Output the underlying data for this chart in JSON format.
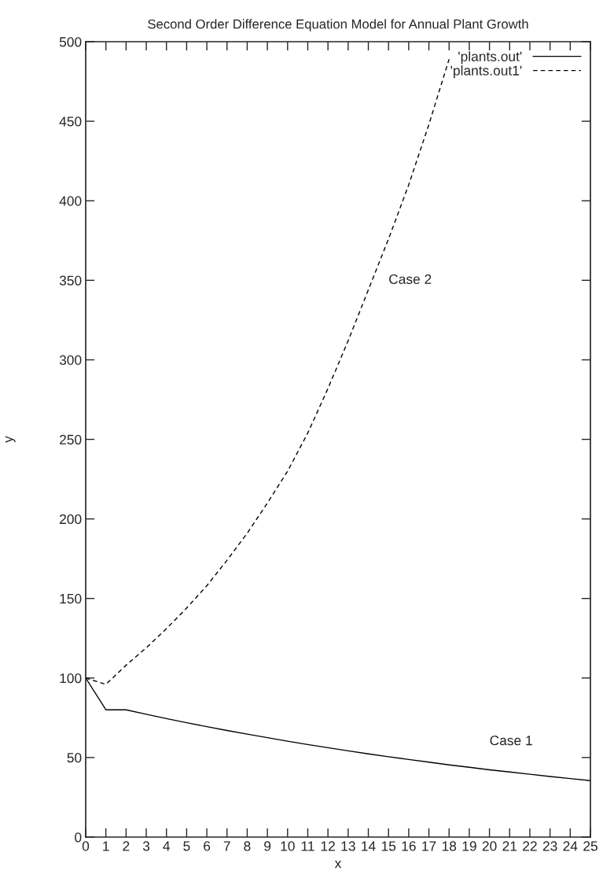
{
  "chart_data": {
    "type": "line",
    "title": "Second Order Difference Equation Model for Annual Plant Growth",
    "xlabel": "x",
    "ylabel": "y",
    "xlim": [
      0,
      25
    ],
    "xticks": [
      0,
      1,
      2,
      3,
      4,
      5,
      6,
      7,
      8,
      9,
      10,
      11,
      12,
      13,
      14,
      15,
      16,
      17,
      18,
      19,
      20,
      21,
      22,
      23,
      24,
      25
    ],
    "ylim": [
      0,
      500
    ],
    "yticks": [
      0,
      50,
      100,
      150,
      200,
      250,
      300,
      350,
      400,
      450,
      500
    ],
    "grid": false,
    "legend": "top right",
    "series": [
      {
        "name": "'plants.out'",
        "color": "#000000",
        "line_style": "solid",
        "x": [
          0,
          1,
          2,
          3,
          4,
          5,
          6,
          7,
          8,
          9,
          10,
          11,
          12,
          13,
          14,
          15,
          16,
          17,
          18,
          19,
          20,
          21,
          22,
          23,
          24,
          25
        ],
        "values": [
          100,
          80,
          80,
          77.2,
          74.5,
          71.9,
          69.4,
          67.0,
          64.7,
          62.5,
          60.3,
          58.2,
          56.2,
          54.2,
          52.3,
          50.5,
          48.8,
          47.1,
          45.4,
          43.9,
          42.3,
          40.9,
          39.5,
          38.1,
          36.8,
          35.5
        ]
      },
      {
        "name": "'plants.out1'",
        "color": "#000000",
        "line_style": "dashed",
        "x": [
          0,
          1,
          2,
          3,
          4,
          5,
          6,
          7,
          8,
          9,
          10,
          11,
          12,
          13,
          14,
          15,
          16,
          17,
          18
        ],
        "values": [
          100,
          96,
          108,
          119,
          131,
          144,
          158,
          174,
          191,
          210,
          230,
          254,
          282,
          312,
          344,
          376,
          410,
          448,
          489
        ]
      }
    ],
    "annotations": [
      "Case 2",
      "Case 1"
    ]
  }
}
